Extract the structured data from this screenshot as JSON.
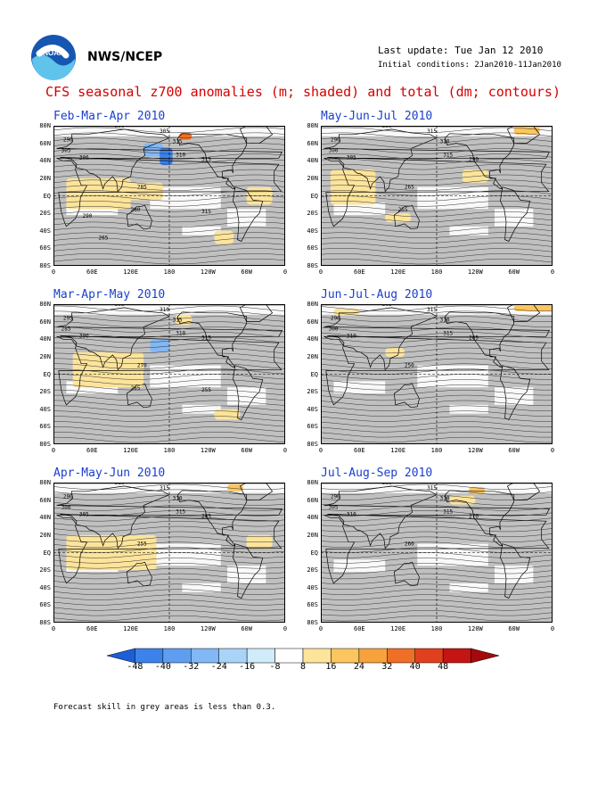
{
  "header": {
    "org": "NWS/NCEP",
    "last_update": "Last update: Tue Jan 12 2010",
    "initial_conditions": "Initial conditions: 2Jan2010-11Jan2010",
    "title": "CFS seasonal z700 anomalies (m; shaded) and total (dm; contours)"
  },
  "logo": {
    "icon": "noaa-logo-icon",
    "text": "NOAA"
  },
  "panels": [
    {
      "title": "Feb-Mar-Apr 2010",
      "contours": [
        "290",
        "305",
        "306",
        "300",
        "305",
        "315",
        "310",
        "315",
        "285",
        "280",
        "315",
        "290",
        "265"
      ]
    },
    {
      "title": "May-Jun-Jul 2010",
      "contours": [
        "290",
        "300",
        "305",
        "300",
        "315",
        "310",
        "315",
        "290",
        "265",
        "255"
      ]
    },
    {
      "title": "Mar-Apr-May 2010",
      "contours": [
        "295",
        "285",
        "300",
        "305",
        "310",
        "315",
        "310",
        "315",
        "270",
        "265",
        "255"
      ]
    },
    {
      "title": "Jun-Jul-Aug 2010",
      "contours": [
        "290",
        "300",
        "310",
        "305",
        "315",
        "310",
        "315",
        "265",
        "250"
      ]
    },
    {
      "title": "Apr-May-Jun 2010",
      "contours": [
        "290",
        "300",
        "305",
        "310",
        "315",
        "310",
        "315",
        "285",
        "255"
      ]
    },
    {
      "title": "Jul-Aug-Sep 2010",
      "contours": [
        "290",
        "305",
        "310",
        "300",
        "315",
        "310",
        "315",
        "270",
        "260"
      ]
    }
  ],
  "lat_labels": [
    "80N",
    "60N",
    "40N",
    "20N",
    "EQ",
    "20S",
    "40S",
    "60S",
    "80S"
  ],
  "lon_labels": [
    "0",
    "60E",
    "120E",
    "180",
    "120W",
    "60W",
    "0"
  ],
  "colorbar": {
    "labels": [
      "-48",
      "-40",
      "-32",
      "-24",
      "-16",
      "-8",
      "8",
      "16",
      "24",
      "32",
      "40",
      "48"
    ],
    "colors": [
      "#1c5fd8",
      "#3c82ea",
      "#5f9df0",
      "#82b8f4",
      "#a9d4f8",
      "#d0ecfb",
      "#ffffff",
      "#fde49b",
      "#fcc55f",
      "#f7a23c",
      "#ef6f26",
      "#e0401e",
      "#c41414",
      "#a50a0a"
    ]
  },
  "colors": {
    "title_red": "#d40000",
    "panel_title_blue": "#1a3fcc",
    "grey_skill": "#c0c0c0",
    "positive_anomaly": "#fde49b",
    "negative_anomaly": "#82b8f4"
  },
  "footnote": "Forecast skill in grey areas is less than 0.3."
}
